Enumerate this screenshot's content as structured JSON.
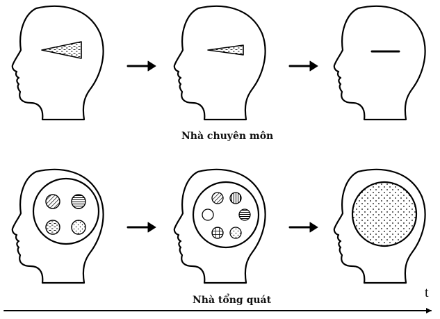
{
  "captions": {
    "specialist": "Nhà chuyên môn",
    "generalist": "Nhà tổng quát"
  },
  "axis": {
    "label": "t"
  },
  "rows": [
    {
      "name": "specialist",
      "stages": [
        "cone-wide",
        "cone-narrow",
        "line"
      ]
    },
    {
      "name": "generalist",
      "stages": [
        "four-circles",
        "six-circles",
        "one-big-dotted-circle"
      ]
    }
  ],
  "colors": {
    "stroke": "#000000",
    "background": "#ffffff"
  }
}
